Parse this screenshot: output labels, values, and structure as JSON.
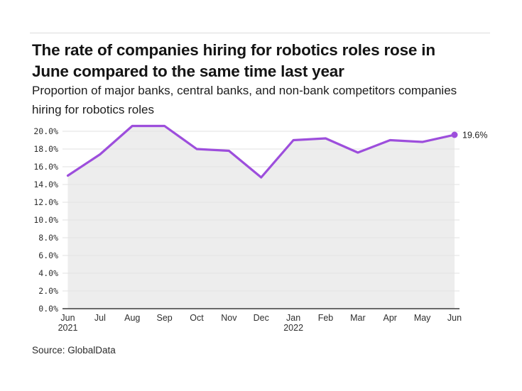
{
  "header": {
    "title_lines": {
      "0": "The rate of companies hiring for robotics roles rose in",
      "1": "June compared to the same time last year"
    },
    "subtitle": "Proportion of major banks, central banks, and non-bank competitors companies hiring for robotics roles"
  },
  "footer": {
    "source": "Source: GlobalData"
  },
  "chart_data": {
    "type": "line",
    "title": "The rate of companies hiring for robotics roles rose in June compared to the same time last year",
    "subtitle": "Proportion of major banks, central banks, and non-bank competitors companies hiring for robotics roles",
    "categories": [
      {
        "label": "Jun",
        "year": "2021"
      },
      {
        "label": "Jul",
        "year": ""
      },
      {
        "label": "Aug",
        "year": ""
      },
      {
        "label": "Sep",
        "year": ""
      },
      {
        "label": "Oct",
        "year": ""
      },
      {
        "label": "Nov",
        "year": ""
      },
      {
        "label": "Dec",
        "year": ""
      },
      {
        "label": "Jan",
        "year": "2022"
      },
      {
        "label": "Feb",
        "year": ""
      },
      {
        "label": "Mar",
        "year": ""
      },
      {
        "label": "Apr",
        "year": ""
      },
      {
        "label": "May",
        "year": ""
      },
      {
        "label": "Jun",
        "year": ""
      }
    ],
    "values": [
      15.0,
      17.4,
      20.6,
      20.6,
      18.0,
      17.8,
      14.8,
      19.0,
      19.2,
      17.6,
      19.0,
      18.8,
      19.6
    ],
    "end_point_label": "19.6%",
    "y_ticks": [
      {
        "v": 0,
        "label": "0.0%"
      },
      {
        "v": 2,
        "label": "2.0%"
      },
      {
        "v": 4,
        "label": "4.0%"
      },
      {
        "v": 6,
        "label": "6.0%"
      },
      {
        "v": 8,
        "label": "8.0%"
      },
      {
        "v": 10,
        "label": "10.0%"
      },
      {
        "v": 12,
        "label": "12.0%"
      },
      {
        "v": 14,
        "label": "14.0%"
      },
      {
        "v": 16,
        "label": "16.0%"
      },
      {
        "v": 18,
        "label": "18.0%"
      },
      {
        "v": 20,
        "label": "20.0%"
      }
    ],
    "xlabel": "",
    "ylabel": "",
    "ylim": [
      0,
      20.6
    ],
    "grid": true,
    "legend": "none",
    "colors": {
      "line": "#9d4edc",
      "marker": "#9d4edc",
      "area_fill": "#ededed",
      "gridline": "#e2e2e2",
      "axis_line": "#3a3a3a"
    }
  }
}
